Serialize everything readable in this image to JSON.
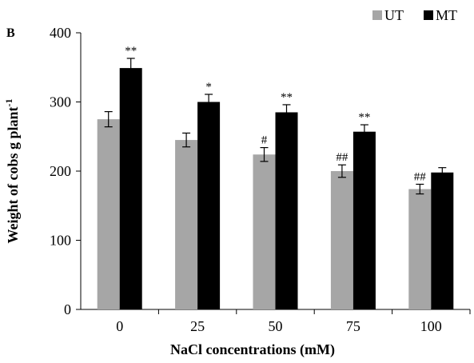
{
  "chart_data": {
    "type": "bar",
    "panel_label": "B",
    "xlabel": "NaCl concentrations (mM)",
    "ylabel_main": "Weight of cobs g plant",
    "ylabel_sup": "-1",
    "ylim": [
      0,
      400
    ],
    "yticks": [
      "0",
      "100",
      "200",
      "300",
      "400"
    ],
    "categories": [
      "0",
      "25",
      "50",
      "75",
      "100"
    ],
    "legend_position": "top-right",
    "series": [
      {
        "name": "UT",
        "color": "#a6a6a6",
        "values": [
          275,
          245,
          224,
          200,
          174
        ],
        "errors": [
          11,
          10,
          10,
          9,
          7
        ],
        "labels": [
          "",
          "",
          "#",
          "##",
          "##"
        ]
      },
      {
        "name": "MT",
        "color": "#000000",
        "values": [
          349,
          300,
          285,
          257,
          198
        ],
        "errors": [
          14,
          11,
          11,
          10,
          7
        ],
        "labels": [
          "**",
          "*",
          "**",
          "**",
          ""
        ]
      }
    ]
  }
}
